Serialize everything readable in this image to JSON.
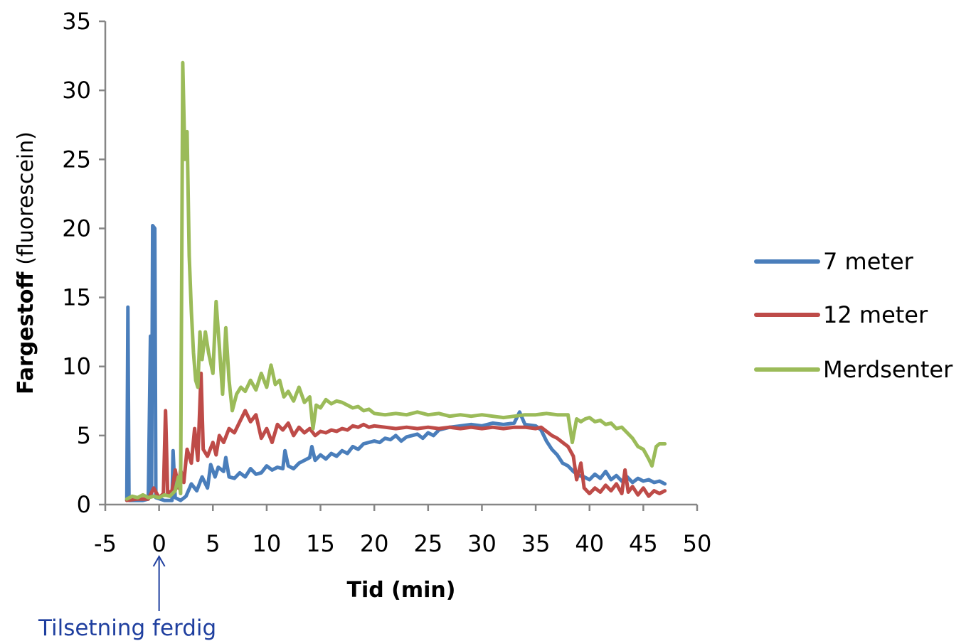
{
  "chart_data": {
    "type": "line",
    "title": "",
    "xlabel": "Tid (min)",
    "ylabel_bold": "Fargestoff",
    "ylabel_rest": " (fluorescein)",
    "xlim": [
      -5,
      50
    ],
    "ylim": [
      0,
      35
    ],
    "x_ticks": [
      "-5",
      "0",
      "5",
      "10",
      "15",
      "20",
      "25",
      "30",
      "35",
      "40",
      "45",
      "50"
    ],
    "y_ticks": [
      "0",
      "5",
      "10",
      "15",
      "20",
      "25",
      "30",
      "35"
    ],
    "grid": false,
    "legend_position": "right",
    "annotation": {
      "text": "Tilsetning ferdig",
      "x": 0,
      "color": "#1f3f9f"
    },
    "series": [
      {
        "name": "7 meter",
        "color": "#4a7ebb",
        "points": [
          [
            -3.0,
            0.3
          ],
          [
            -2.9,
            14.3
          ],
          [
            -2.8,
            0.3
          ],
          [
            -1.5,
            0.3
          ],
          [
            -1.0,
            0.4
          ],
          [
            -0.8,
            12.2
          ],
          [
            -0.7,
            0.6
          ],
          [
            -0.6,
            20.2
          ],
          [
            -0.4,
            20.0
          ],
          [
            -0.3,
            0.5
          ],
          [
            0.5,
            0.3
          ],
          [
            1.2,
            0.3
          ],
          [
            1.3,
            3.9
          ],
          [
            1.5,
            0.5
          ],
          [
            2.0,
            0.3
          ],
          [
            2.5,
            0.6
          ],
          [
            3.0,
            1.5
          ],
          [
            3.5,
            1.0
          ],
          [
            4.0,
            2.0
          ],
          [
            4.5,
            1.2
          ],
          [
            4.8,
            2.9
          ],
          [
            5.2,
            2.0
          ],
          [
            5.5,
            2.7
          ],
          [
            6.0,
            2.4
          ],
          [
            6.2,
            3.4
          ],
          [
            6.5,
            2.0
          ],
          [
            7.0,
            1.9
          ],
          [
            7.5,
            2.3
          ],
          [
            8.0,
            2.0
          ],
          [
            8.5,
            2.6
          ],
          [
            9.0,
            2.2
          ],
          [
            9.5,
            2.3
          ],
          [
            10.0,
            2.8
          ],
          [
            10.5,
            2.5
          ],
          [
            11.0,
            2.7
          ],
          [
            11.5,
            2.6
          ],
          [
            11.7,
            3.9
          ],
          [
            12.0,
            2.8
          ],
          [
            12.5,
            2.6
          ],
          [
            13.0,
            3.0
          ],
          [
            13.5,
            3.2
          ],
          [
            14.0,
            3.4
          ],
          [
            14.2,
            4.2
          ],
          [
            14.5,
            3.2
          ],
          [
            15.0,
            3.6
          ],
          [
            15.5,
            3.3
          ],
          [
            16.0,
            3.7
          ],
          [
            16.5,
            3.5
          ],
          [
            17.0,
            3.9
          ],
          [
            17.5,
            3.7
          ],
          [
            18.0,
            4.2
          ],
          [
            18.5,
            4.0
          ],
          [
            19.0,
            4.4
          ],
          [
            19.5,
            4.5
          ],
          [
            20.0,
            4.6
          ],
          [
            20.5,
            4.5
          ],
          [
            21.0,
            4.8
          ],
          [
            21.5,
            4.7
          ],
          [
            22.0,
            5.0
          ],
          [
            22.5,
            4.6
          ],
          [
            23.0,
            4.9
          ],
          [
            23.5,
            5.0
          ],
          [
            24.0,
            5.1
          ],
          [
            24.5,
            4.8
          ],
          [
            25.0,
            5.2
          ],
          [
            25.5,
            5.0
          ],
          [
            26.0,
            5.4
          ],
          [
            27.0,
            5.6
          ],
          [
            28.0,
            5.7
          ],
          [
            29.0,
            5.8
          ],
          [
            30.0,
            5.7
          ],
          [
            31.0,
            5.9
          ],
          [
            32.0,
            5.8
          ],
          [
            33.0,
            5.9
          ],
          [
            33.5,
            6.7
          ],
          [
            34.0,
            5.8
          ],
          [
            35.0,
            5.7
          ],
          [
            35.5,
            5.4
          ],
          [
            36.0,
            4.6
          ],
          [
            36.5,
            4.0
          ],
          [
            37.0,
            3.6
          ],
          [
            37.5,
            3.0
          ],
          [
            38.0,
            2.8
          ],
          [
            38.5,
            2.4
          ],
          [
            39.0,
            2.1
          ],
          [
            39.5,
            2.0
          ],
          [
            40.0,
            1.8
          ],
          [
            40.5,
            2.2
          ],
          [
            41.0,
            1.9
          ],
          [
            41.5,
            2.4
          ],
          [
            42.0,
            1.8
          ],
          [
            42.5,
            2.1
          ],
          [
            43.0,
            1.7
          ],
          [
            43.5,
            2.0
          ],
          [
            44.0,
            1.6
          ],
          [
            44.5,
            1.9
          ],
          [
            45.0,
            1.7
          ],
          [
            45.5,
            1.8
          ],
          [
            46.0,
            1.6
          ],
          [
            46.5,
            1.7
          ],
          [
            47.0,
            1.5
          ]
        ]
      },
      {
        "name": "12 meter",
        "color": "#be4b48",
        "points": [
          [
            -3.0,
            0.3
          ],
          [
            -2.0,
            0.4
          ],
          [
            -1.0,
            0.4
          ],
          [
            -0.5,
            1.2
          ],
          [
            0.0,
            0.5
          ],
          [
            0.4,
            0.8
          ],
          [
            0.6,
            6.8
          ],
          [
            0.8,
            0.8
          ],
          [
            1.2,
            1.0
          ],
          [
            1.5,
            2.5
          ],
          [
            1.8,
            1.2
          ],
          [
            2.0,
            2.5
          ],
          [
            2.3,
            1.6
          ],
          [
            2.6,
            4.0
          ],
          [
            3.0,
            3.0
          ],
          [
            3.3,
            5.5
          ],
          [
            3.6,
            3.2
          ],
          [
            3.9,
            9.5
          ],
          [
            4.1,
            4.0
          ],
          [
            4.5,
            3.5
          ],
          [
            5.0,
            4.5
          ],
          [
            5.3,
            3.6
          ],
          [
            5.6,
            5.0
          ],
          [
            6.0,
            4.5
          ],
          [
            6.5,
            5.5
          ],
          [
            7.0,
            5.2
          ],
          [
            7.5,
            6.0
          ],
          [
            8.0,
            6.8
          ],
          [
            8.5,
            6.0
          ],
          [
            9.0,
            6.5
          ],
          [
            9.5,
            4.8
          ],
          [
            10.0,
            5.5
          ],
          [
            10.5,
            4.5
          ],
          [
            11.0,
            5.8
          ],
          [
            11.5,
            5.4
          ],
          [
            12.0,
            5.9
          ],
          [
            12.5,
            5.0
          ],
          [
            13.0,
            5.6
          ],
          [
            13.5,
            5.2
          ],
          [
            14.0,
            5.5
          ],
          [
            14.5,
            5.0
          ],
          [
            15.0,
            5.3
          ],
          [
            15.5,
            5.2
          ],
          [
            16.0,
            5.4
          ],
          [
            16.5,
            5.3
          ],
          [
            17.0,
            5.5
          ],
          [
            17.5,
            5.4
          ],
          [
            18.0,
            5.7
          ],
          [
            18.5,
            5.6
          ],
          [
            19.0,
            5.8
          ],
          [
            19.5,
            5.6
          ],
          [
            20.0,
            5.7
          ],
          [
            21.0,
            5.6
          ],
          [
            22.0,
            5.5
          ],
          [
            23.0,
            5.6
          ],
          [
            24.0,
            5.5
          ],
          [
            25.0,
            5.6
          ],
          [
            26.0,
            5.5
          ],
          [
            27.0,
            5.6
          ],
          [
            28.0,
            5.5
          ],
          [
            29.0,
            5.6
          ],
          [
            30.0,
            5.5
          ],
          [
            31.0,
            5.6
          ],
          [
            32.0,
            5.5
          ],
          [
            33.0,
            5.6
          ],
          [
            34.0,
            5.6
          ],
          [
            35.0,
            5.5
          ],
          [
            35.5,
            5.6
          ],
          [
            36.0,
            5.3
          ],
          [
            36.5,
            5.0
          ],
          [
            37.0,
            4.8
          ],
          [
            37.5,
            4.5
          ],
          [
            38.0,
            4.2
          ],
          [
            38.5,
            3.5
          ],
          [
            38.8,
            1.8
          ],
          [
            39.2,
            3.0
          ],
          [
            39.5,
            1.2
          ],
          [
            40.0,
            0.8
          ],
          [
            40.5,
            1.2
          ],
          [
            41.0,
            0.9
          ],
          [
            41.5,
            1.4
          ],
          [
            42.0,
            1.0
          ],
          [
            42.5,
            1.5
          ],
          [
            43.0,
            0.8
          ],
          [
            43.3,
            2.5
          ],
          [
            43.6,
            0.9
          ],
          [
            44.0,
            1.3
          ],
          [
            44.5,
            0.7
          ],
          [
            45.0,
            1.2
          ],
          [
            45.5,
            0.6
          ],
          [
            46.0,
            1.0
          ],
          [
            46.5,
            0.8
          ],
          [
            47.0,
            1.0
          ]
        ]
      },
      {
        "name": "Merdsenter",
        "color": "#9bbb59",
        "points": [
          [
            -3.0,
            0.4
          ],
          [
            -2.5,
            0.6
          ],
          [
            -2.0,
            0.5
          ],
          [
            -1.5,
            0.7
          ],
          [
            -1.0,
            0.5
          ],
          [
            -0.5,
            0.6
          ],
          [
            0.0,
            0.5
          ],
          [
            0.5,
            0.7
          ],
          [
            1.0,
            0.6
          ],
          [
            1.5,
            1.0
          ],
          [
            1.8,
            2.0
          ],
          [
            2.0,
            0.8
          ],
          [
            2.2,
            32.0
          ],
          [
            2.4,
            25.0
          ],
          [
            2.6,
            27.0
          ],
          [
            2.8,
            18.0
          ],
          [
            3.0,
            14.0
          ],
          [
            3.2,
            11.0
          ],
          [
            3.4,
            9.0
          ],
          [
            3.6,
            8.5
          ],
          [
            3.8,
            12.5
          ],
          [
            4.0,
            10.5
          ],
          [
            4.3,
            12.5
          ],
          [
            4.6,
            11.0
          ],
          [
            5.0,
            9.5
          ],
          [
            5.3,
            14.7
          ],
          [
            5.6,
            11.5
          ],
          [
            5.9,
            8.0
          ],
          [
            6.2,
            12.8
          ],
          [
            6.5,
            9.0
          ],
          [
            6.8,
            6.8
          ],
          [
            7.2,
            8.0
          ],
          [
            7.6,
            8.5
          ],
          [
            8.0,
            8.2
          ],
          [
            8.5,
            9.0
          ],
          [
            9.0,
            8.3
          ],
          [
            9.5,
            9.5
          ],
          [
            10.0,
            8.5
          ],
          [
            10.4,
            10.1
          ],
          [
            10.8,
            8.7
          ],
          [
            11.2,
            9.0
          ],
          [
            11.6,
            7.8
          ],
          [
            12.0,
            8.2
          ],
          [
            12.5,
            7.5
          ],
          [
            13.0,
            8.5
          ],
          [
            13.5,
            7.4
          ],
          [
            14.0,
            7.8
          ],
          [
            14.3,
            5.5
          ],
          [
            14.6,
            7.2
          ],
          [
            15.0,
            7.0
          ],
          [
            15.5,
            7.6
          ],
          [
            16.0,
            7.3
          ],
          [
            16.5,
            7.5
          ],
          [
            17.0,
            7.4
          ],
          [
            17.5,
            7.2
          ],
          [
            18.0,
            7.0
          ],
          [
            18.5,
            7.1
          ],
          [
            19.0,
            6.8
          ],
          [
            19.5,
            6.9
          ],
          [
            20.0,
            6.6
          ],
          [
            21.0,
            6.5
          ],
          [
            22.0,
            6.6
          ],
          [
            23.0,
            6.5
          ],
          [
            24.0,
            6.7
          ],
          [
            25.0,
            6.5
          ],
          [
            26.0,
            6.6
          ],
          [
            27.0,
            6.4
          ],
          [
            28.0,
            6.5
          ],
          [
            29.0,
            6.4
          ],
          [
            30.0,
            6.5
          ],
          [
            31.0,
            6.4
          ],
          [
            32.0,
            6.3
          ],
          [
            33.0,
            6.4
          ],
          [
            34.0,
            6.5
          ],
          [
            35.0,
            6.5
          ],
          [
            36.0,
            6.6
          ],
          [
            37.0,
            6.5
          ],
          [
            38.0,
            6.5
          ],
          [
            38.4,
            4.5
          ],
          [
            38.8,
            6.2
          ],
          [
            39.2,
            6.0
          ],
          [
            39.6,
            6.2
          ],
          [
            40.0,
            6.3
          ],
          [
            40.5,
            6.0
          ],
          [
            41.0,
            6.1
          ],
          [
            41.5,
            5.8
          ],
          [
            42.0,
            5.9
          ],
          [
            42.5,
            5.5
          ],
          [
            43.0,
            5.6
          ],
          [
            43.5,
            5.2
          ],
          [
            44.0,
            4.8
          ],
          [
            44.5,
            4.2
          ],
          [
            45.0,
            4.0
          ],
          [
            45.5,
            3.3
          ],
          [
            45.8,
            2.8
          ],
          [
            46.2,
            4.2
          ],
          [
            46.5,
            4.4
          ],
          [
            47.0,
            4.4
          ]
        ]
      }
    ]
  }
}
